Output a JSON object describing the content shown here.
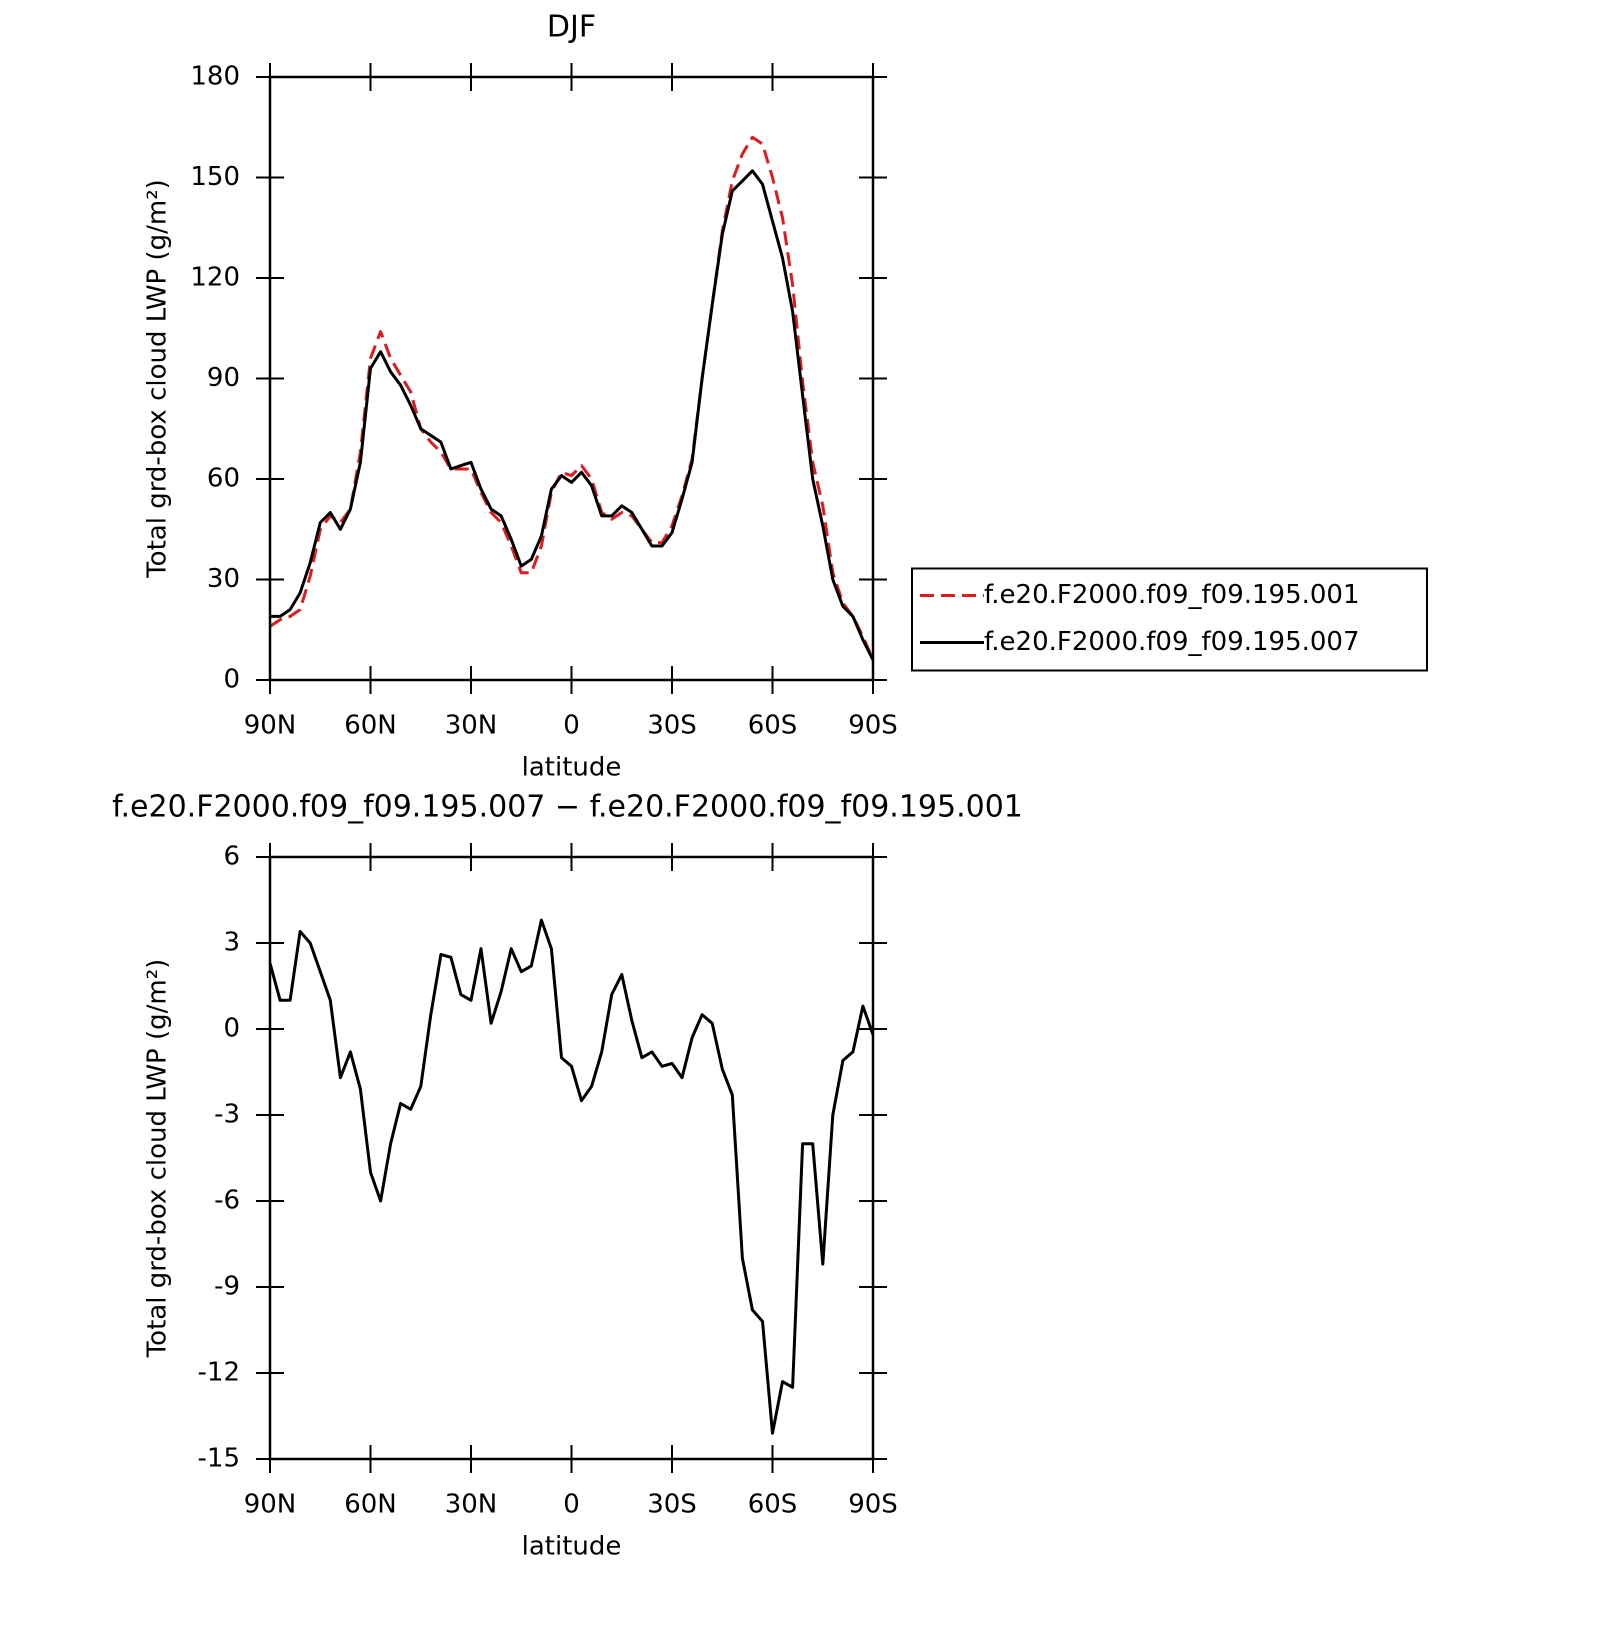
{
  "chart_data": [
    {
      "type": "line",
      "title": "DJF",
      "x_label": "latitude",
      "y_label": "Total grd-box cloud LWP (g/m²)",
      "x": [
        90,
        87,
        84,
        81,
        78,
        75,
        72,
        69,
        66,
        63,
        60,
        57,
        54,
        51,
        48,
        45,
        42,
        39,
        36,
        33,
        30,
        27,
        24,
        21,
        18,
        15,
        12,
        9,
        6,
        3,
        0,
        -3,
        -6,
        -9,
        -12,
        -15,
        -18,
        -21,
        -24,
        -27,
        -30,
        -33,
        -36,
        -39,
        -42,
        -45,
        -48,
        -51,
        -54,
        -57,
        -60,
        -63,
        -66,
        -69,
        -72,
        -75,
        -78,
        -81,
        -84,
        -87,
        -90
      ],
      "series": [
        {
          "name": "f.e20.F2000.f09_f09.195.001",
          "color": "#e31a1c",
          "dash": true,
          "values": [
            16,
            18,
            19,
            21,
            31,
            45,
            49,
            47,
            51,
            68,
            96,
            104,
            96,
            91,
            86,
            75,
            71,
            68,
            63,
            63,
            63,
            56,
            50,
            47,
            40,
            32,
            32,
            40,
            56,
            62,
            61,
            64,
            60,
            50,
            48,
            50,
            49,
            45,
            41,
            41,
            46,
            55,
            66,
            90,
            112,
            134,
            149,
            157,
            162,
            160,
            150,
            138,
            118,
            89,
            65,
            52,
            32,
            23,
            19,
            13,
            6
          ]
        },
        {
          "name": "f.e20.F2000.f09_f09.195.007",
          "color": "#000000",
          "dash": false,
          "values": [
            19,
            19,
            21,
            26,
            35,
            47,
            50,
            45,
            51,
            65,
            93,
            98,
            92,
            88,
            82,
            75,
            73,
            71,
            63,
            64,
            65,
            57,
            51,
            49,
            42,
            34,
            36,
            43,
            57,
            61,
            59,
            62,
            58,
            49,
            49,
            52,
            50,
            45,
            40,
            40,
            44,
            54,
            65,
            90,
            112,
            133,
            146,
            149,
            152,
            148,
            137,
            126,
            110,
            85,
            60,
            46,
            30,
            22,
            19,
            12,
            6
          ]
        }
      ],
      "xlim": [
        90,
        -90
      ],
      "xticks": [
        {
          "value": 90,
          "label": "90N"
        },
        {
          "value": 60,
          "label": "60N"
        },
        {
          "value": 30,
          "label": "30N"
        },
        0,
        {
          "value": -30,
          "label": "30S"
        },
        {
          "value": -60,
          "label": "60S"
        },
        {
          "value": -90,
          "label": "90S"
        }
      ],
      "ylim": [
        0,
        180
      ],
      "yticks": [
        0,
        30,
        60,
        90,
        120,
        150,
        180
      ],
      "legend": "right"
    },
    {
      "type": "line",
      "title": "f.e20.F2000.f09_f09.195.007 − f.e20.F2000.f09_f09.195.001",
      "x_label": "latitude",
      "y_label": "Total grd-box cloud LWP (g/m²)",
      "x": [
        90,
        87,
        84,
        81,
        78,
        75,
        72,
        69,
        66,
        63,
        60,
        57,
        54,
        51,
        48,
        45,
        42,
        39,
        36,
        33,
        30,
        27,
        24,
        21,
        18,
        15,
        12,
        9,
        6,
        3,
        0,
        -3,
        -6,
        -9,
        -12,
        -15,
        -18,
        -21,
        -24,
        -27,
        -30,
        -33,
        -36,
        -39,
        -42,
        -45,
        -48,
        -51,
        -54,
        -57,
        -60,
        -63,
        -66,
        -69,
        -72,
        -75,
        -78,
        -81,
        -84,
        -87,
        -90
      ],
      "color": "#000000",
      "values": [
        2.3,
        1.0,
        1.0,
        3.4,
        3.0,
        2.0,
        1.0,
        -1.7,
        -0.8,
        -2.1,
        -5.0,
        -6.0,
        -4.0,
        -2.6,
        -2.8,
        -2.0,
        0.5,
        2.6,
        2.5,
        1.2,
        1.0,
        2.8,
        0.2,
        1.3,
        2.8,
        2.0,
        2.2,
        3.8,
        2.8,
        -1.0,
        -1.3,
        -2.5,
        -2.0,
        -0.8,
        1.2,
        1.9,
        0.3,
        -1.0,
        -0.8,
        -1.3,
        -1.2,
        -1.7,
        -0.3,
        0.5,
        0.2,
        -1.4,
        -2.3,
        -8.0,
        -9.8,
        -10.2,
        -14.1,
        -12.3,
        -12.5,
        -4.0,
        -4.0,
        -8.2,
        -3.0,
        -1.1,
        -0.8,
        0.8,
        -0.2
      ],
      "xlim": [
        90,
        -90
      ],
      "xticks": [
        {
          "value": 90,
          "label": "90N"
        },
        {
          "value": 60,
          "label": "60N"
        },
        {
          "value": 30,
          "label": "30N"
        },
        0,
        {
          "value": -30,
          "label": "30S"
        },
        {
          "value": -60,
          "label": "60S"
        },
        {
          "value": -90,
          "label": "90S"
        }
      ],
      "ylim": [
        -15,
        6
      ],
      "yticks": [
        -15,
        -12,
        -9,
        -6,
        -3,
        0,
        3,
        6
      ]
    }
  ]
}
